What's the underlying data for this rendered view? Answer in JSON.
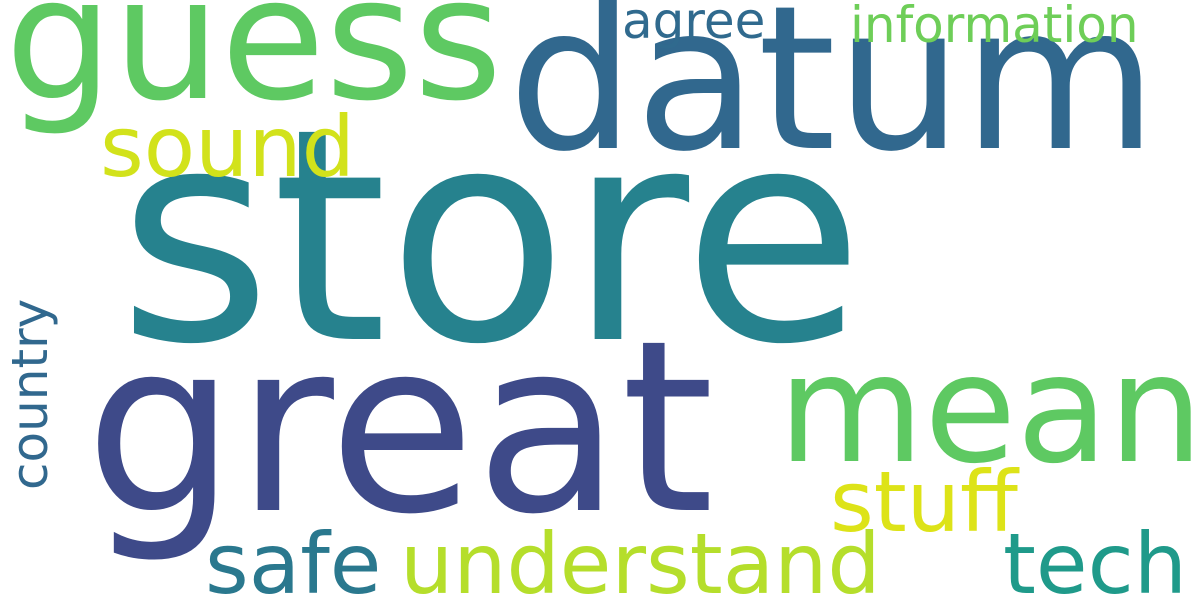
{
  "words": [
    {
      "text": "store",
      "color": "#26828e"
    },
    {
      "text": "great",
      "color": "#3e4a89"
    },
    {
      "text": "datum",
      "color": "#31688e"
    },
    {
      "text": "guess",
      "color": "#5ec962"
    },
    {
      "text": "mean",
      "color": "#5ec962"
    },
    {
      "text": "understand",
      "color": "#b5de2b"
    },
    {
      "text": "sound",
      "color": "#d2e21b"
    },
    {
      "text": "stuff",
      "color": "#dde318"
    },
    {
      "text": "safe",
      "color": "#2a788e"
    },
    {
      "text": "tech",
      "color": "#1f9a8a"
    },
    {
      "text": "country",
      "color": "#31688e"
    },
    {
      "text": "agree",
      "color": "#306a8e"
    },
    {
      "text": "information",
      "color": "#6ece58"
    }
  ]
}
